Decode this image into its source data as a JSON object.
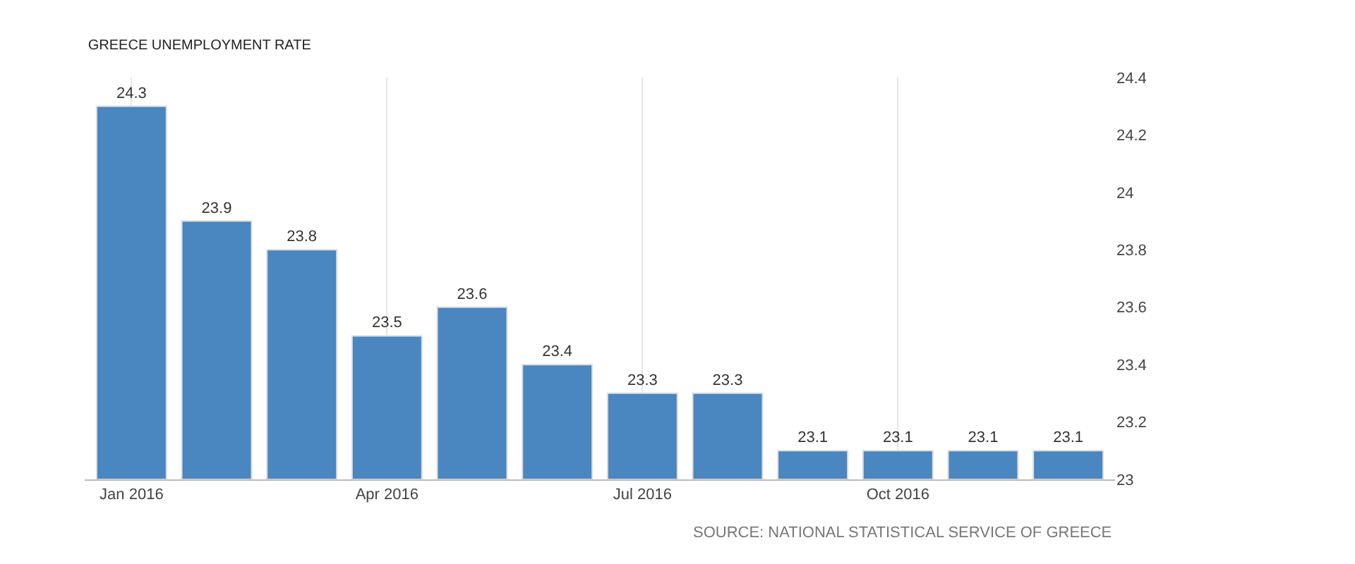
{
  "chart_data": {
    "type": "bar",
    "title": "GREECE UNEMPLOYMENT RATE",
    "categories": [
      "Jan 2016",
      null,
      null,
      "Apr 2016",
      null,
      null,
      "Jul 2016",
      null,
      null,
      "Oct 2016",
      null,
      null
    ],
    "values": [
      24.3,
      23.9,
      23.8,
      23.5,
      23.6,
      23.4,
      23.3,
      23.3,
      23.1,
      23.1,
      23.1,
      23.1
    ],
    "color": "#4a86c0",
    "ylim": [
      23,
      24.4
    ],
    "yticks": [
      23,
      23.2,
      23.4,
      23.6,
      23.8,
      24,
      24.2,
      24.4
    ],
    "grid": "x",
    "data_labels": true,
    "annotations": [
      "SOURCE: NATIONAL STATISTICAL SERVICE OF GREECE"
    ]
  }
}
